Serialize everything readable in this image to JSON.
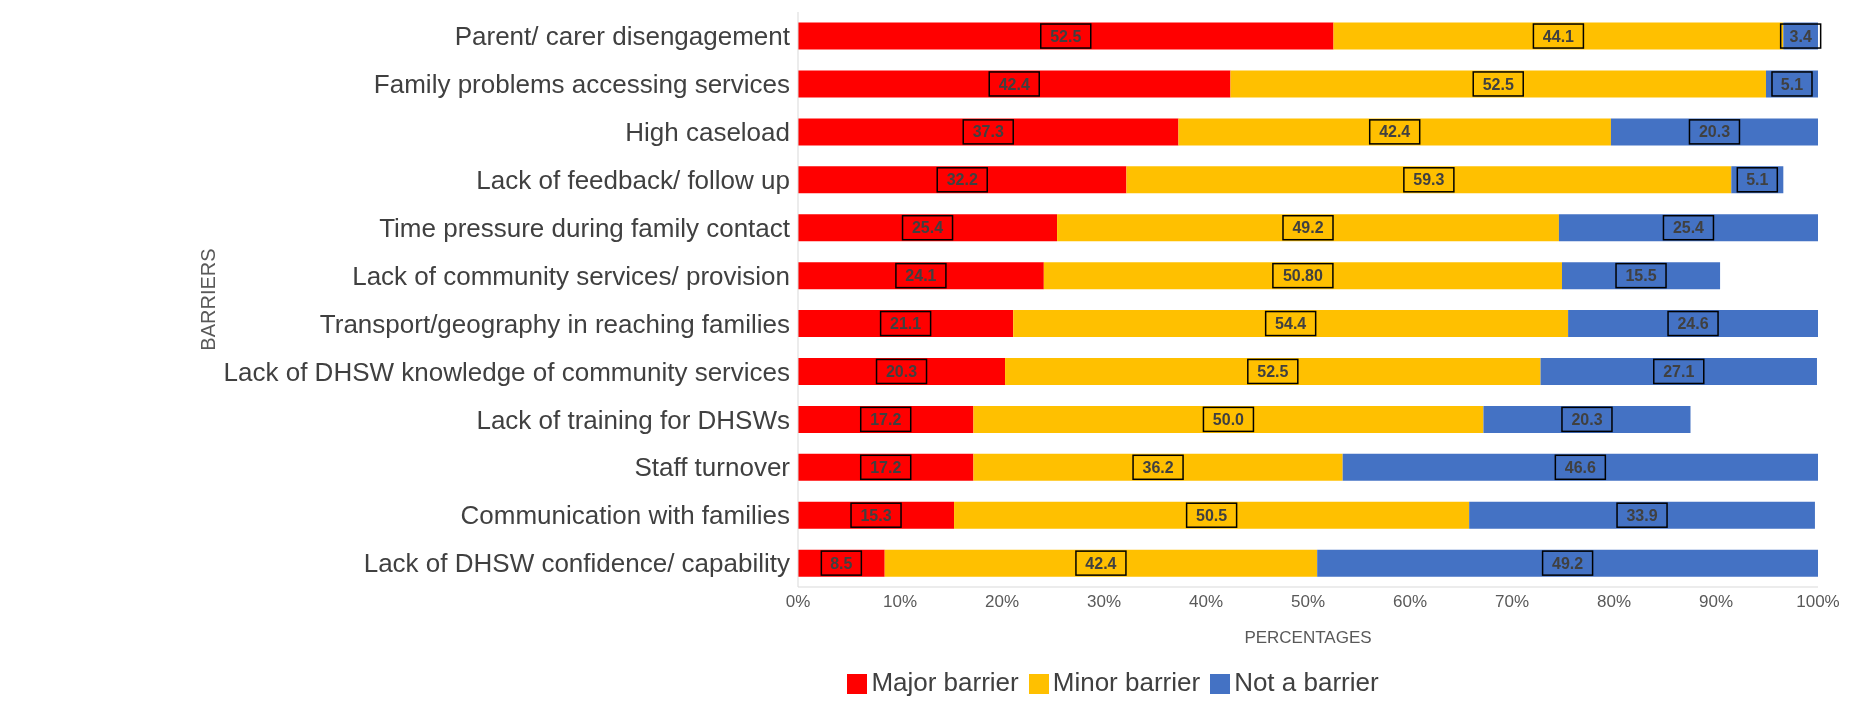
{
  "chart_data": {
    "type": "bar",
    "orientation": "horizontal",
    "stacked": true,
    "ylabel": "BARRIERS",
    "xlabel": "PERCENTAGES",
    "categories": [
      "Parent/ carer disengagement",
      "Family problems accessing services",
      "High caseload",
      "Lack of feedback/ follow up",
      "Time pressure during family contact",
      "Lack of community services/ provision",
      "Transport/geography in reaching families",
      "Lack of DHSW knowledge of community services",
      "Lack of training for DHSWs ",
      "Staff turnover",
      "Communication with families",
      "Lack of DHSW confidence/ capability "
    ],
    "series": [
      {
        "name": "Major barrier",
        "color": "#ff0000",
        "values": [
          52.5,
          42.4,
          37.3,
          32.2,
          25.4,
          24.1,
          21.1,
          20.3,
          17.2,
          17.2,
          15.3,
          8.5
        ],
        "value_labels": [
          "52.5",
          "42.4",
          "37.3",
          "32.2",
          "25.4",
          "24.1",
          "21.1",
          "20.3",
          "17.2",
          "17.2",
          "15.3",
          "8.5"
        ]
      },
      {
        "name": "Minor barrier",
        "color": "#ffc000",
        "values": [
          44.1,
          52.5,
          42.4,
          59.3,
          49.2,
          50.8,
          54.4,
          52.5,
          50.0,
          36.2,
          50.5,
          42.4
        ],
        "value_labels": [
          "44.1",
          "52.5",
          "42.4",
          "59.3",
          "49.2",
          "50.80",
          "54.4",
          "52.5",
          "50.0",
          "36.2",
          "50.5",
          "42.4"
        ]
      },
      {
        "name": "Not a barrier",
        "color": "#4472c4",
        "values": [
          3.4,
          5.1,
          20.3,
          5.1,
          25.4,
          15.5,
          24.6,
          27.1,
          20.3,
          46.6,
          33.9,
          49.2
        ],
        "value_labels": [
          "3.4",
          "5.1",
          "20.3",
          "5.1",
          "25.4",
          "15.5",
          "24.6",
          "27.1",
          "20.3",
          "46.6",
          "33.9",
          "49.2"
        ]
      }
    ],
    "xlim": [
      0,
      100
    ],
    "xticks": [
      {
        "value": 0,
        "label": "0%"
      },
      {
        "value": 10,
        "label": "10%"
      },
      {
        "value": 20,
        "label": "20%"
      },
      {
        "value": 30,
        "label": "30%"
      },
      {
        "value": 40,
        "label": "40%"
      },
      {
        "value": 50,
        "label": "50%"
      },
      {
        "value": 60,
        "label": "60%"
      },
      {
        "value": 70,
        "label": "70%"
      },
      {
        "value": 80,
        "label": "80%"
      },
      {
        "value": 90,
        "label": "90%"
      },
      {
        "value": 100,
        "label": "100%"
      }
    ],
    "grid": false,
    "legend": "bottom"
  }
}
